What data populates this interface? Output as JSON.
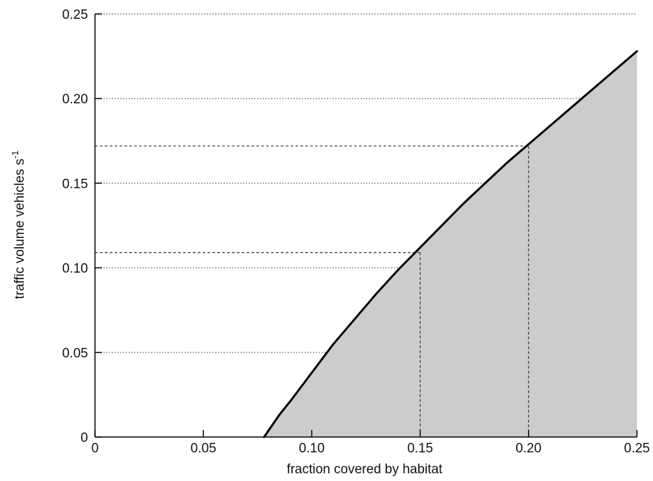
{
  "chart_data": {
    "type": "area",
    "title": "",
    "xlabel": "fraction covered by habitat",
    "ylabel": "traffic volume vehicles s",
    "ylabel_superscript": "-1",
    "xlim": [
      0,
      0.25
    ],
    "ylim": [
      0,
      0.25
    ],
    "x_ticks": [
      0,
      0.05,
      0.1,
      0.15,
      0.2,
      0.25
    ],
    "x_tick_labels": [
      "0",
      "0.05",
      "0.10",
      "0.15",
      "0.20",
      "0.25"
    ],
    "y_ticks": [
      0,
      0.05,
      0.1,
      0.15,
      0.2,
      0.25
    ],
    "y_tick_labels": [
      "0",
      "0.05",
      "0.10",
      "0.15",
      "0.20",
      "0.25"
    ],
    "grid": "horizontal",
    "fill_color": "#cccccc",
    "line_color": "#000000",
    "curve": {
      "x": [
        0.078,
        0.085,
        0.09,
        0.1,
        0.11,
        0.12,
        0.13,
        0.14,
        0.15,
        0.16,
        0.17,
        0.18,
        0.19,
        0.2,
        0.21,
        0.22,
        0.23,
        0.24,
        0.25
      ],
      "y": [
        0.0,
        0.013,
        0.021,
        0.038,
        0.055,
        0.07,
        0.085,
        0.099,
        0.112,
        0.125,
        0.138,
        0.15,
        0.162,
        0.173,
        0.184,
        0.195,
        0.206,
        0.217,
        0.228
      ]
    },
    "reference_points": [
      {
        "x": 0.15,
        "y": 0.109
      },
      {
        "x": 0.2,
        "y": 0.172
      }
    ]
  }
}
